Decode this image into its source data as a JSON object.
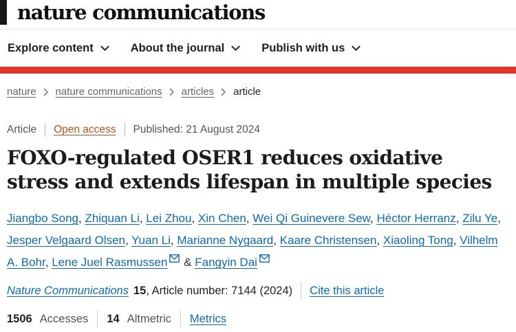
{
  "brand": {
    "logo_text": "nature communications"
  },
  "nav": {
    "items": [
      {
        "label": "Explore content"
      },
      {
        "label": "About the journal"
      },
      {
        "label": "Publish with us"
      }
    ]
  },
  "breadcrumb": {
    "items": [
      {
        "label": "nature"
      },
      {
        "label": "nature communications"
      },
      {
        "label": "articles"
      },
      {
        "label": "article"
      }
    ]
  },
  "article_meta": {
    "type_label": "Article",
    "access_label": "Open access",
    "published_label": "Published: 21 August 2024"
  },
  "title": "FOXO-regulated OSER1 reduces oxidative stress and extends lifespan in multiple species",
  "authors": [
    {
      "name": "Jiangbo Song"
    },
    {
      "name": "Zhiquan Li"
    },
    {
      "name": "Lei Zhou"
    },
    {
      "name": "Xin Chen"
    },
    {
      "name": "Wei Qi Guinevere Sew"
    },
    {
      "name": "Héctor Herranz"
    },
    {
      "name": "Zilu Ye"
    },
    {
      "name": "Jesper Velgaard Olsen"
    },
    {
      "name": "Yuan Li"
    },
    {
      "name": "Marianne Nygaard"
    },
    {
      "name": "Kaare Christensen"
    },
    {
      "name": "Xiaoling Tong"
    },
    {
      "name": "Vilhelm A. Bohr"
    },
    {
      "name": "Lene Juel Rasmussen",
      "email_icon": true
    },
    {
      "name": "Fangyin Dai",
      "email_icon": true
    }
  ],
  "authors_ampersand": "&",
  "citation": {
    "journal": "Nature Communications",
    "volume": "15",
    "article_number_text": ", Article number: 7144 (2024)",
    "cite_link": "Cite this article"
  },
  "metrics": {
    "accesses_count": "1506",
    "accesses_label": "Accesses",
    "altmetric_count": "14",
    "altmetric_label": "Altmetric",
    "metrics_link": "Metrics"
  },
  "icons": {
    "chevron_down": "⌄",
    "chevron_right": "›",
    "envelope": "✉"
  },
  "colors": {
    "accent_red": "#e63323",
    "link_blue": "#0d6cb3",
    "open_access_orange": "#b8501c",
    "muted_gray": "#555555"
  }
}
